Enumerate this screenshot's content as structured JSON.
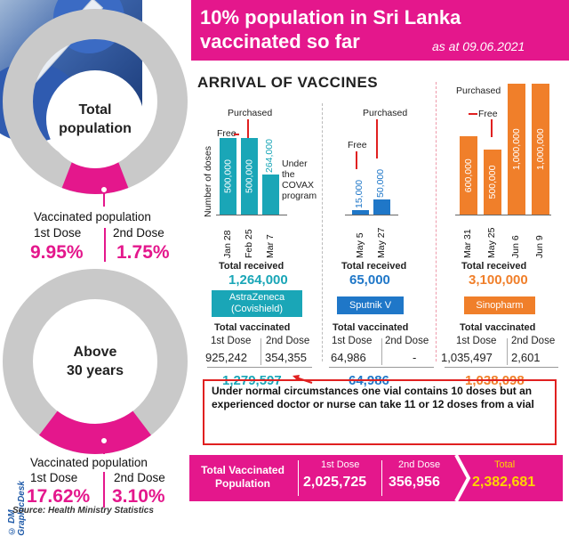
{
  "header": {
    "title": "10% population in Sri Lanka vaccinated so far",
    "date": "as at 09.06.2021"
  },
  "total_population": {
    "label_line1": "Total",
    "label_line2": "population",
    "section_label": "Vaccinated population",
    "dose1_label": "1st Dose",
    "dose2_label": "2nd Dose",
    "dose1_pct": "9.95%",
    "dose2_pct": "1.75%"
  },
  "above30": {
    "label_line1": "Above",
    "label_line2": "30 years",
    "section_label": "Vaccinated population",
    "dose1_label": "1st Dose",
    "dose2_label": "2nd Dose",
    "dose1_pct": "17.62%",
    "dose2_pct": "3.10%"
  },
  "credit": "© DM GraphicDesk",
  "source": "Source: Health Ministry Statistics",
  "arrival_title": "ARRIVAL OF VACCINES",
  "astra": {
    "ylabel": "Number of doses",
    "free_label": "Free",
    "purchased_label": "Purchased",
    "covax_label": "Under the COVAX program",
    "total_received_label": "Total received",
    "total_received": "1,264,000",
    "name": "AstraZeneca (Covishield)",
    "total_vaccinated_label": "Total vaccinated",
    "dose1_label": "1st Dose",
    "dose2_label": "2nd Dose",
    "dose1": "925,242",
    "dose2": "354,355",
    "sum": "1,279,597"
  },
  "sputnik": {
    "free_label": "Free",
    "purchased_label": "Purchased",
    "total_received_label": "Total received",
    "total_received": "65,000",
    "name": "Sputnik V",
    "total_vaccinated_label": "Total vaccinated",
    "dose1_label": "1st Dose",
    "dose2_label": "2nd Dose",
    "dose1": "64,986",
    "dose2": "-",
    "sum": "64,986"
  },
  "sinopharm": {
    "free_label": "Free",
    "purchased_label": "Purchased",
    "total_received_label": "Total received",
    "total_received": "3,100,000",
    "name": "Sinopharm",
    "total_vaccinated_label": "Total vaccinated",
    "dose1_label": "1st Dose",
    "dose2_label": "2nd Dose",
    "dose1": "1,035,497",
    "dose2": "2,601",
    "sum": "1,038,098"
  },
  "note": "Under normal circumstances one vial contains 10 doses but an experienced doctor or nurse can take 11 or 12 doses from a vial",
  "footer": {
    "label": "Total Vaccinated Population",
    "dose1_label": "1st Dose",
    "dose1": "2,025,725",
    "dose2_label": "2nd Dose",
    "dose2": "356,956",
    "total_label": "Total",
    "total": "2,382,681"
  },
  "colors": {
    "pink": "#e4178c",
    "astra": "#1aa6b7",
    "sputnik": "#1f77c8",
    "sinopharm": "#f07f2a",
    "donut_grey": "#c9c9c9",
    "note_red": "#e02020",
    "total_yellow": "#ffd400"
  },
  "chart_data": [
    {
      "type": "bar",
      "name": "AstraZeneca (Covishield)",
      "ylabel": "Number of doses",
      "categories": [
        "Jan 28",
        "Feb 25",
        "Mar 7"
      ],
      "values": [
        500000,
        500000,
        264000
      ],
      "value_labels": [
        "500,000",
        "500,000",
        "264,000"
      ],
      "kinds": [
        "Free",
        "Purchased",
        "Under the COVAX program"
      ]
    },
    {
      "type": "bar",
      "name": "Sputnik V",
      "categories": [
        "May 5",
        "May 27"
      ],
      "values": [
        15000,
        50000
      ],
      "value_labels": [
        "15,000",
        "50,000"
      ],
      "kinds": [
        "Free",
        "Purchased"
      ]
    },
    {
      "type": "bar",
      "name": "Sinopharm",
      "categories": [
        "Mar 31",
        "May 25",
        "Jun 6",
        "Jun 9"
      ],
      "values": [
        600000,
        500000,
        1000000,
        1000000
      ],
      "value_labels": [
        "600,000",
        "500,000",
        "1,000,000",
        "1,000,000"
      ],
      "kinds": [
        "Free",
        "Free",
        "Purchased",
        "Purchased"
      ]
    },
    {
      "type": "pie",
      "name": "Total population",
      "labels": [
        "1st Dose",
        "2nd Dose"
      ],
      "values": [
        9.95,
        1.75
      ]
    },
    {
      "type": "pie",
      "name": "Above 30 years",
      "labels": [
        "1st Dose",
        "2nd Dose"
      ],
      "values": [
        17.62,
        3.1
      ]
    }
  ]
}
